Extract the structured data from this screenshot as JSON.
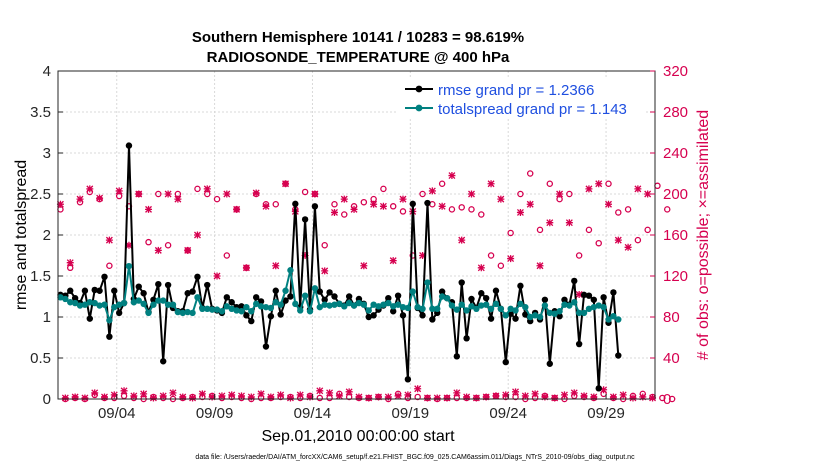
{
  "chart_data": {
    "type": "line",
    "title_line1": "Southern Hemisphere 10141 / 10283 = 98.619%",
    "title_line2": "RADIOSONDE_TEMPERATURE @ 400 hPa",
    "xlabel": "Sep.01,2010 00:00:00 start",
    "ylabel_left": "rmse and totalspread",
    "ylabel_right": "# of obs: o=possible; ×=assimilated",
    "xlim": [
      1,
      31.5
    ],
    "ylim_left": [
      0,
      4
    ],
    "ylim_right": [
      0,
      320
    ],
    "x_ticks": [
      {
        "day": 4,
        "label": "09/04"
      },
      {
        "day": 9,
        "label": "09/09"
      },
      {
        "day": 14,
        "label": "09/14"
      },
      {
        "day": 19,
        "label": "09/19"
      },
      {
        "day": 24,
        "label": "09/24"
      },
      {
        "day": 29,
        "label": "09/29"
      }
    ],
    "y_ticks_left": [
      {
        "value": 0,
        "label": "0"
      },
      {
        "value": 0.5,
        "label": "0.5"
      },
      {
        "value": 1,
        "label": "1"
      },
      {
        "value": 1.5,
        "label": "1.5"
      },
      {
        "value": 2,
        "label": "2"
      },
      {
        "value": 2.5,
        "label": "2.5"
      },
      {
        "value": 3,
        "label": "3"
      },
      {
        "value": 3.5,
        "label": "3.5"
      },
      {
        "value": 4,
        "label": "4"
      }
    ],
    "y_ticks_right": [
      {
        "value": 0,
        "label": "0"
      },
      {
        "value": 40,
        "label": "40"
      },
      {
        "value": 80,
        "label": "80"
      },
      {
        "value": 120,
        "label": "120"
      },
      {
        "value": 160,
        "label": "160"
      },
      {
        "value": 200,
        "label": "200"
      },
      {
        "value": 240,
        "label": "240"
      },
      {
        "value": 280,
        "label": "280"
      },
      {
        "value": 320,
        "label": "320"
      }
    ],
    "time_step_days": 0.25,
    "series": [
      {
        "name": "rmse grand pr = 1.2366",
        "color": "#000000",
        "axis": "left",
        "values": [
          1.27,
          1.26,
          1.32,
          1.23,
          1.17,
          1.32,
          0.98,
          1.33,
          1.32,
          1.49,
          0.76,
          1.32,
          1.05,
          1.17,
          3.09,
          1.22,
          1.37,
          1.29,
          1.06,
          1.21,
          1.4,
          0.46,
          1.39,
          1.11,
          1.07,
          1.07,
          1.29,
          1.31,
          1.49,
          1.11,
          1.39,
          1.1,
          1.08,
          1.05,
          1.24,
          1.18,
          1.12,
          1.13,
          1.02,
          0.95,
          1.24,
          1.19,
          0.64,
          1.01,
          1.32,
          1.03,
          1.2,
          1.25,
          2.38,
          1.12,
          2.19,
          1.09,
          2.35,
          1.31,
          1.21,
          1.3,
          1.25,
          1.16,
          1.14,
          1.25,
          1.14,
          1.22,
          1.16,
          1.0,
          1.02,
          1.09,
          1.14,
          1.23,
          1.07,
          1.26,
          1.02,
          0.24,
          2.38,
          1.11,
          1.02,
          2.39,
          0.97,
          1.05,
          1.31,
          1.23,
          1.18,
          0.52,
          1.42,
          0.74,
          1.22,
          1.11,
          1.29,
          1.23,
          0.98,
          1.32,
          1.1,
          0.45,
          1.04,
          0.98,
          1.38,
          1.03,
          0.95,
          1.05,
          0.97,
          1.21,
          0.43,
          1.07,
          1.01,
          1.21,
          1.15,
          1.44,
          0.67,
          1.27,
          1.26,
          1.21,
          0.13,
          1.24,
          0.93,
          1.3,
          0.53
        ]
      },
      {
        "name": "totalspread grand pr = 1.143",
        "color": "#008080",
        "axis": "left",
        "values": [
          1.24,
          1.22,
          1.18,
          1.17,
          1.14,
          1.15,
          1.18,
          1.17,
          1.14,
          1.15,
          0.96,
          1.12,
          1.15,
          1.17,
          1.62,
          1.18,
          1.2,
          1.16,
          1.05,
          1.15,
          1.2,
          1.2,
          1.15,
          1.15,
          1.06,
          1.05,
          1.06,
          1.05,
          1.24,
          1.1,
          1.1,
          1.09,
          1.09,
          1.07,
          1.13,
          1.1,
          1.08,
          1.07,
          1.12,
          1.07,
          1.16,
          1.13,
          1.12,
          1.11,
          1.18,
          1.15,
          1.32,
          1.57,
          1.16,
          1.08,
          1.26,
          1.07,
          1.35,
          1.12,
          1.15,
          1.14,
          1.15,
          1.16,
          1.13,
          1.17,
          1.14,
          1.17,
          1.15,
          1.08,
          1.15,
          1.13,
          1.15,
          1.17,
          1.13,
          1.15,
          1.12,
          1.11,
          1.31,
          1.12,
          1.1,
          1.42,
          1.1,
          1.1,
          1.25,
          1.23,
          1.14,
          1.09,
          1.15,
          1.08,
          1.13,
          1.1,
          1.14,
          1.15,
          1.1,
          1.16,
          1.1,
          1.02,
          1.1,
          1.08,
          1.16,
          1.12,
          1.0,
          1.02,
          1.0,
          1.14,
          1.05,
          1.04,
          1.07,
          1.15,
          1.14,
          1.18,
          1.05,
          1.05,
          1.1,
          1.12,
          1.14,
          1.12,
          0.97,
          1.01,
          0.97
        ]
      },
      {
        "name": "possible",
        "color": "#d6004f",
        "axis": "right",
        "marker": "o",
        "values": [
          185,
          0,
          128,
          1,
          192,
          0,
          202,
          4,
          195,
          1,
          130,
          1,
          198,
          3,
          188,
          1,
          200,
          0,
          153,
          2,
          200,
          1,
          150,
          0,
          200,
          1,
          145,
          2,
          205,
          2,
          200,
          3,
          195,
          1,
          140,
          2,
          185,
          1,
          128,
          0,
          200,
          1,
          190,
          1,
          190,
          2,
          210,
          2,
          185,
          1,
          202,
          3,
          200,
          1,
          150,
          1,
          190,
          5,
          180,
          2,
          188,
          1,
          192,
          1,
          195,
          2,
          205,
          0,
          188,
          5,
          183,
          1,
          140,
          2,
          200,
          1,
          190,
          0,
          210,
          1,
          185,
          1,
          187,
          1,
          185,
          1,
          180,
          2,
          140,
          3,
          130,
          2,
          162,
          2,
          200,
          0,
          220,
          1,
          165,
          3,
          210,
          1,
          195,
          0,
          200,
          3,
          140,
          2,
          165,
          1,
          152,
          5,
          210,
          1,
          182,
          0,
          185,
          3,
          155,
          5,
          165,
          2,
          208,
          1,
          185,
          0
        ]
      },
      {
        "name": "assimilated",
        "color": "#d6004f",
        "axis": "right",
        "marker": "x",
        "values": [
          190,
          1,
          133,
          2,
          195,
          1,
          205,
          6,
          196,
          2,
          155,
          4,
          203,
          8,
          150,
          3,
          200,
          5,
          185,
          1,
          145,
          3,
          200,
          6,
          195,
          2,
          145,
          1,
          160,
          5,
          205,
          2,
          120,
          3,
          200,
          4,
          185,
          3,
          128,
          2,
          201,
          5,
          188,
          2,
          130,
          4,
          210,
          1,
          183,
          4,
          140,
          2,
          200,
          8,
          125,
          6,
          182,
          3,
          195,
          7,
          185,
          2,
          130,
          1,
          190,
          2,
          188,
          2,
          135,
          3,
          195,
          4,
          183,
          10,
          140,
          1,
          203,
          1,
          188,
          1,
          218,
          6,
          155,
          2,
          200,
          1,
          128,
          2,
          210,
          3,
          195,
          4,
          137,
          7,
          182,
          3,
          190,
          5,
          130,
          2,
          172,
          1,
          200,
          4,
          172,
          6,
          102,
          3,
          205,
          2,
          210,
          9,
          190,
          2,
          155,
          4,
          148,
          1,
          205,
          2,
          200,
          1
        ]
      }
    ]
  },
  "footer": "data file: /Users/raeder/DAI/ATM_forcXX/CAM6_setup/f.e21.FHIST_BGC.f09_025.CAM6assim.011/Diags_NTrS_2010-09/obs_diag_output.nc"
}
